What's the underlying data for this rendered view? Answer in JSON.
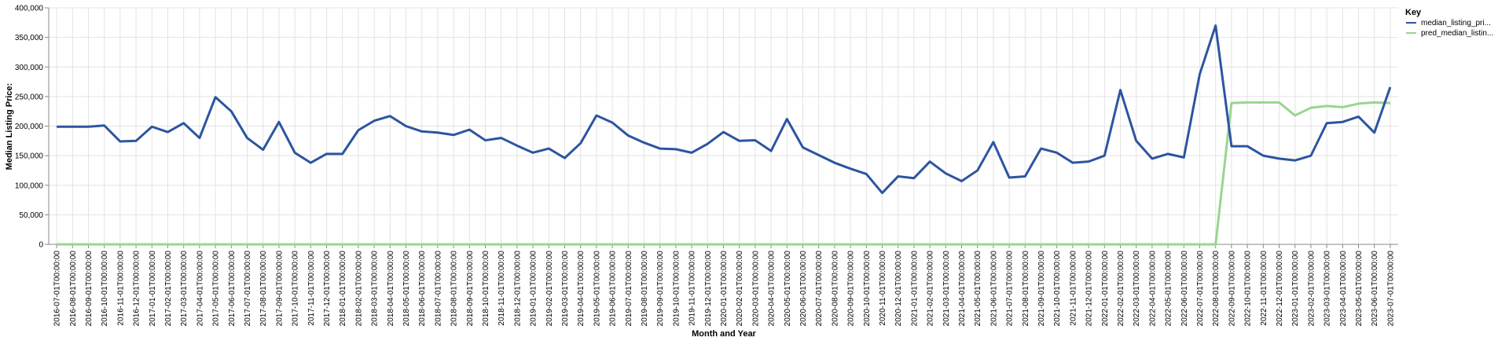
{
  "chart_data": {
    "type": "line",
    "xlabel": "Month and Year",
    "ylabel": "Median Listing Price:",
    "ylim": [
      0,
      400000
    ],
    "yticks": [
      0,
      50000,
      100000,
      150000,
      200000,
      250000,
      300000,
      350000,
      400000
    ],
    "ytick_labels": [
      "0",
      "50,000",
      "100,000",
      "150,000",
      "200,000",
      "250,000",
      "300,000",
      "350,000",
      "400,000"
    ],
    "grid": true,
    "legend": {
      "title": "Key",
      "placement": "top-right"
    },
    "categories": [
      "2016-07-01T00:00:00",
      "2016-08-01T00:00:00",
      "2016-09-01T00:00:00",
      "2016-10-01T00:00:00",
      "2016-11-01T00:00:00",
      "2016-12-01T00:00:00",
      "2017-01-01T00:00:00",
      "2017-02-01T00:00:00",
      "2017-03-01T00:00:00",
      "2017-04-01T00:00:00",
      "2017-05-01T00:00:00",
      "2017-06-01T00:00:00",
      "2017-07-01T00:00:00",
      "2017-08-01T00:00:00",
      "2017-09-01T00:00:00",
      "2017-10-01T00:00:00",
      "2017-11-01T00:00:00",
      "2017-12-01T00:00:00",
      "2018-01-01T00:00:00",
      "2018-02-01T00:00:00",
      "2018-03-01T00:00:00",
      "2018-04-01T00:00:00",
      "2018-05-01T00:00:00",
      "2018-06-01T00:00:00",
      "2018-07-01T00:00:00",
      "2018-08-01T00:00:00",
      "2018-09-01T00:00:00",
      "2018-10-01T00:00:00",
      "2018-11-01T00:00:00",
      "2018-12-01T00:00:00",
      "2019-01-01T00:00:00",
      "2019-02-01T00:00:00",
      "2019-03-01T00:00:00",
      "2019-04-01T00:00:00",
      "2019-05-01T00:00:00",
      "2019-06-01T00:00:00",
      "2019-07-01T00:00:00",
      "2019-08-01T00:00:00",
      "2019-09-01T00:00:00",
      "2019-10-01T00:00:00",
      "2019-11-01T00:00:00",
      "2019-12-01T00:00:00",
      "2020-01-01T00:00:00",
      "2020-02-01T00:00:00",
      "2020-03-01T00:00:00",
      "2020-04-01T00:00:00",
      "2020-05-01T00:00:00",
      "2020-06-01T00:00:00",
      "2020-07-01T00:00:00",
      "2020-08-01T00:00:00",
      "2020-09-01T00:00:00",
      "2020-10-01T00:00:00",
      "2020-11-01T00:00:00",
      "2020-12-01T00:00:00",
      "2021-01-01T00:00:00",
      "2021-02-01T00:00:00",
      "2021-03-01T00:00:00",
      "2021-04-01T00:00:00",
      "2021-05-01T00:00:00",
      "2021-06-01T00:00:00",
      "2021-07-01T00:00:00",
      "2021-08-01T00:00:00",
      "2021-09-01T00:00:00",
      "2021-10-01T00:00:00",
      "2021-11-01T00:00:00",
      "2021-12-01T00:00:00",
      "2022-01-01T00:00:00",
      "2022-02-01T00:00:00",
      "2022-03-01T00:00:00",
      "2022-04-01T00:00:00",
      "2022-05-01T00:00:00",
      "2022-06-01T00:00:00",
      "2022-07-01T00:00:00",
      "2022-08-01T00:00:00",
      "2022-09-01T00:00:00",
      "2022-10-01T00:00:00",
      "2022-11-01T00:00:00",
      "2022-12-01T00:00:00",
      "2023-01-01T00:00:00",
      "2023-02-01T00:00:00",
      "2023-03-01T00:00:00",
      "2023-04-01T00:00:00",
      "2023-05-01T00:00:00",
      "2023-06-01T00:00:00",
      "2023-07-01T00:00:00"
    ],
    "series": [
      {
        "name": "median_listing_pri...",
        "color": "#2c55a0",
        "values": [
          199000,
          199000,
          199000,
          201000,
          174000,
          175000,
          199000,
          190000,
          205000,
          180000,
          249000,
          225000,
          180000,
          160000,
          207000,
          155000,
          138000,
          153000,
          153000,
          193000,
          209000,
          217000,
          200000,
          191000,
          189000,
          185000,
          194000,
          176000,
          180000,
          167000,
          155000,
          162000,
          146000,
          171000,
          218000,
          206000,
          184000,
          172000,
          162000,
          161000,
          155000,
          170000,
          190000,
          175000,
          176000,
          158000,
          212000,
          164000,
          151000,
          138000,
          128000,
          119000,
          87000,
          115000,
          112000,
          140000,
          120000,
          107000,
          125000,
          173000,
          113000,
          115000,
          162000,
          155000,
          138000,
          140000,
          150000,
          261000,
          175000,
          145000,
          153000,
          147000,
          288000,
          370000,
          166000,
          166000,
          150000,
          145000,
          142000,
          150000,
          205000,
          207000,
          216000,
          189000,
          266000
        ]
      },
      {
        "name": "pred_median_listin...",
        "color": "#98d68f",
        "values": [
          0,
          0,
          0,
          0,
          0,
          0,
          0,
          0,
          0,
          0,
          0,
          0,
          0,
          0,
          0,
          0,
          0,
          0,
          0,
          0,
          0,
          0,
          0,
          0,
          0,
          0,
          0,
          0,
          0,
          0,
          0,
          0,
          0,
          0,
          0,
          0,
          0,
          0,
          0,
          0,
          0,
          0,
          0,
          0,
          0,
          0,
          0,
          0,
          0,
          0,
          0,
          0,
          0,
          0,
          0,
          0,
          0,
          0,
          0,
          0,
          0,
          0,
          0,
          0,
          0,
          0,
          0,
          0,
          0,
          0,
          0,
          0,
          0,
          0,
          239000,
          240000,
          240000,
          240000,
          218000,
          231000,
          234000,
          232000,
          238000,
          240000,
          239000
        ]
      }
    ]
  }
}
